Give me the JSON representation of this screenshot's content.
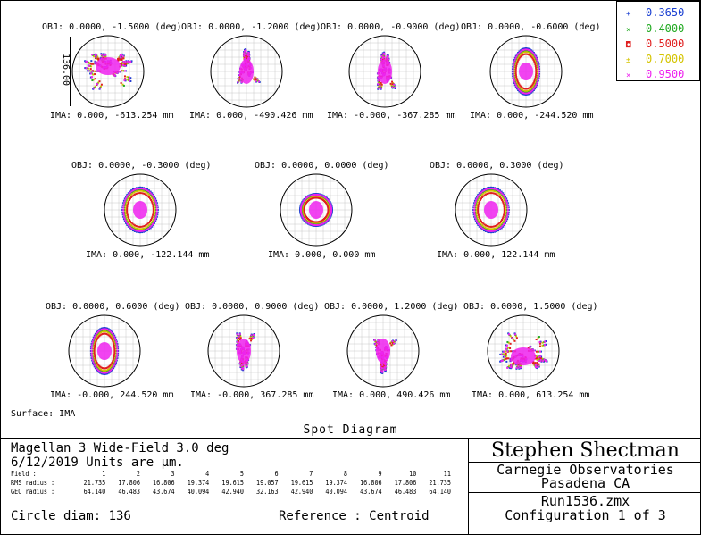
{
  "legend": [
    {
      "wavelength": "0.3650",
      "symbol": "+",
      "color": "#1a3fd1"
    },
    {
      "wavelength": "0.4000",
      "symbol": "×",
      "color": "#22aa22"
    },
    {
      "wavelength": "0.5000",
      "symbol": "◘",
      "color": "#e02020"
    },
    {
      "wavelength": "0.7000",
      "symbol": "±",
      "color": "#d4c400"
    },
    {
      "wavelength": "0.9500",
      "symbol": "×",
      "color": "#ee22ee"
    }
  ],
  "scale_label": "136.00",
  "spots": [
    {
      "obj": "OBJ: 0.0000, -1.5000 (deg)",
      "ima": "IMA: 0.000, -613.254 mm",
      "shape": "wing",
      "flip": 1
    },
    {
      "obj": "OBJ: 0.0000, -1.2000 (deg)",
      "ima": "IMA: 0.000, -490.426 mm",
      "shape": "arrow",
      "flip": 1
    },
    {
      "obj": "OBJ: 0.0000, -0.9000 (deg)",
      "ima": "IMA: -0.000, -367.285 mm",
      "shape": "tri",
      "flip": 1
    },
    {
      "obj": "OBJ: 0.0000, -0.6000 (deg)",
      "ima": "IMA: 0.000, -244.520 mm",
      "shape": "oval",
      "flip": 1
    },
    {
      "obj": "OBJ: 0.0000, -0.3000 (deg)",
      "ima": "IMA: 0.000, -122.144 mm",
      "shape": "round",
      "flip": 1
    },
    {
      "obj": "OBJ: 0.0000, 0.0000 (deg)",
      "ima": "IMA: 0.000, 0.000 mm",
      "shape": "center",
      "flip": 1
    },
    {
      "obj": "OBJ: 0.0000, 0.3000 (deg)",
      "ima": "IMA: 0.000, 122.144 mm",
      "shape": "round",
      "flip": -1
    },
    {
      "obj": "OBJ: 0.0000, 0.6000 (deg)",
      "ima": "IMA: -0.000, 244.520 mm",
      "shape": "oval",
      "flip": -1
    },
    {
      "obj": "OBJ: 0.0000, 0.9000 (deg)",
      "ima": "IMA: -0.000, 367.285 mm",
      "shape": "tri",
      "flip": -1
    },
    {
      "obj": "OBJ: 0.0000, 1.2000 (deg)",
      "ima": "IMA: 0.000, 490.426 mm",
      "shape": "arrow",
      "flip": -1
    },
    {
      "obj": "OBJ: 0.0000, 1.5000 (deg)",
      "ima": "IMA: 0.000, 613.254 mm",
      "shape": "wing",
      "flip": -1
    }
  ],
  "surface_label": "Surface: IMA",
  "title": "Spot Diagram",
  "info": {
    "line1": "Magellan 3 Wide-Field 3.0 deg",
    "line2": "6/12/2019  Units are µm.",
    "field_label": "Field    :",
    "rms_label": "RMS radius :",
    "geo_label": "GEO radius :",
    "fields": [
      "1",
      "2",
      "3",
      "4",
      "5",
      "6",
      "7",
      "8",
      "9",
      "10",
      "11"
    ],
    "rms": [
      "21.735",
      "17.806",
      "16.806",
      "19.374",
      "19.615",
      "19.057",
      "19.615",
      "19.374",
      "16.806",
      "17.806",
      "21.735"
    ],
    "geo": [
      "64.140",
      "46.483",
      "43.674",
      "40.094",
      "42.940",
      "32.163",
      "42.940",
      "40.094",
      "43.674",
      "46.483",
      "64.140"
    ],
    "circle_diam": "Circle diam: 136",
    "reference": "Reference  : Centroid"
  },
  "credits": {
    "name": "Stephen Shectman",
    "org": "Carnegie Observatories",
    "city": "Pasadena CA",
    "file": "Run1536.zmx",
    "config": "Configuration 1 of 3"
  }
}
